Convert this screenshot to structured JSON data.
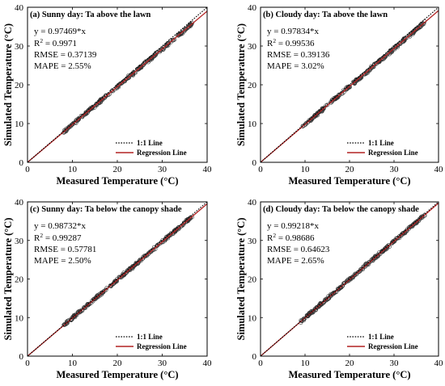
{
  "chart_data": [
    {
      "type": "scatter",
      "title": "(a) Sunny day: Ta above the lawn",
      "xlabel": "Measured Temperature (°C)",
      "ylabel": "Simulated Temperature (°C)",
      "xlim": [
        0,
        40
      ],
      "ylim": [
        0,
        40
      ],
      "xticks": [
        "0",
        "10",
        "20",
        "30",
        "40"
      ],
      "yticks": [
        "0",
        "10",
        "20",
        "30",
        "40"
      ],
      "equation": "y = 0.97469*x",
      "r2_label": "R",
      "r2_value": " = 0.9971",
      "rmse": "RMSE = 0.37139",
      "mape": "MAPE = 2.55%",
      "slope": 0.97469,
      "data_range": [
        8,
        37
      ],
      "legend": [
        "1:1 Line",
        "Regression Line"
      ]
    },
    {
      "type": "scatter",
      "title": "(b) Cloudy day: Ta above the lawn",
      "xlabel": "Measured Temperature (°C)",
      "ylabel": "Simulated Temperature (°C)",
      "xlim": [
        0,
        40
      ],
      "ylim": [
        0,
        40
      ],
      "xticks": [
        "0",
        "10",
        "20",
        "30",
        "40"
      ],
      "yticks": [
        "0",
        "10",
        "20",
        "30",
        "40"
      ],
      "equation": "y = 0.97834*x",
      "r2_label": "R",
      "r2_value": " = 0.99536",
      "rmse": "RMSE = 0.39136",
      "mape": "MAPE = 3.02%",
      "slope": 0.97834,
      "data_range": [
        9,
        37
      ],
      "legend": [
        "1:1 Line",
        "Regression Line"
      ]
    },
    {
      "type": "scatter",
      "title": "(c) Sunny day: Ta below the canopy shade",
      "xlabel": "Measured Temperature (°C)",
      "ylabel": "Simulated Temperature (°C)",
      "xlim": [
        0,
        40
      ],
      "ylim": [
        0,
        40
      ],
      "xticks": [
        "0",
        "10",
        "20",
        "30",
        "40"
      ],
      "yticks": [
        "0",
        "10",
        "20",
        "30",
        "40"
      ],
      "equation": "y = 0.98732*x",
      "r2_label": "R",
      "r2_value": " = 0.99287",
      "rmse": "RMSE = 0.57781",
      "mape": "MAPE = 2.50%",
      "slope": 0.98732,
      "data_range": [
        8,
        37
      ],
      "legend": [
        "1:1 Line",
        "Regression Line"
      ]
    },
    {
      "type": "scatter",
      "title": "(d) Cloudy day: Ta below the canopy shade",
      "xlabel": "Measured Temperature (°C)",
      "ylabel": "Simulated Temperature (°C)",
      "xlim": [
        0,
        40
      ],
      "ylim": [
        0,
        40
      ],
      "xticks": [
        "0",
        "10",
        "20",
        "30",
        "40"
      ],
      "yticks": [
        "0",
        "10",
        "20",
        "30",
        "40"
      ],
      "equation": "y = 0.99218*x",
      "r2_label": "R",
      "r2_value": " = 0.98686",
      "rmse": "RMSE = 0.64623",
      "mape": "MAPE = 2.65%",
      "slope": 0.99218,
      "data_range": [
        9,
        37
      ],
      "legend": [
        "1:1 Line",
        "Regression Line"
      ]
    }
  ],
  "colors": {
    "regression": "#b22222",
    "identity": "#000000",
    "marker": "#333333",
    "axis": "#000000"
  }
}
